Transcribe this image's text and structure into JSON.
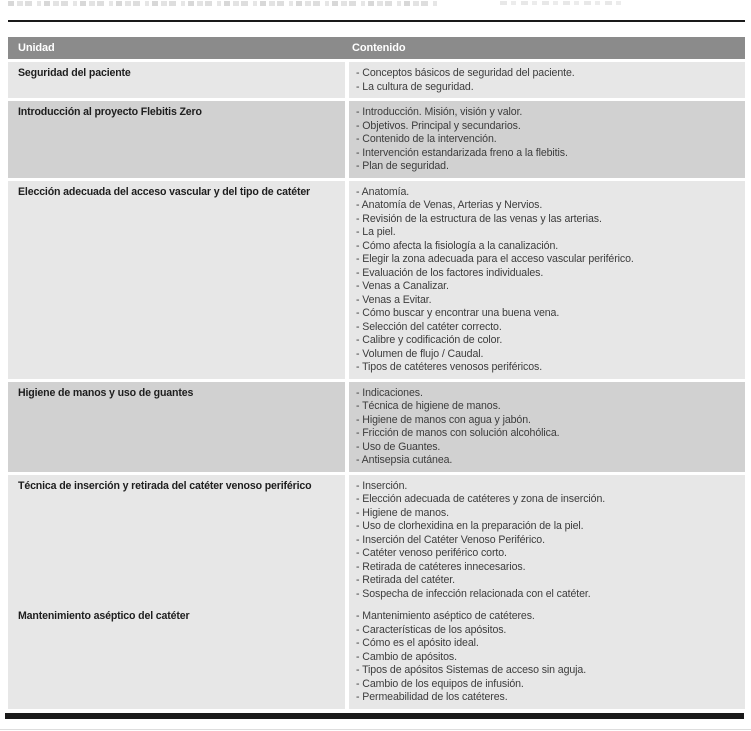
{
  "colors": {
    "header_bg": "#8b8b8b",
    "header_text": "#ffffff",
    "row_light": "#e7e7e7",
    "row_medium": "#d1d1d1",
    "text": "#3c3c3c",
    "label_text": "#1e1e1e",
    "rule": "#1a1a1a"
  },
  "table": {
    "bullet": "-",
    "headers": [
      "Unidad",
      "Contenido"
    ],
    "rows": [
      {
        "unidad": "Seguridad del paciente",
        "shade": "light",
        "attached": false,
        "contenido": [
          "Conceptos básicos de seguridad del paciente.",
          "La cultura de seguridad."
        ]
      },
      {
        "unidad": "Introducción al proyecto Flebitis Zero",
        "shade": "medium",
        "attached": false,
        "contenido": [
          "Introducción. Misión, visión y valor.",
          "Objetivos. Principal y secundarios.",
          "Contenido de la intervención.",
          "Intervención estandarizada freno a la flebitis.",
          "Plan de seguridad."
        ]
      },
      {
        "unidad": "Elección adecuada del acceso vascular y del tipo de catéter",
        "shade": "light",
        "attached": false,
        "contenido": [
          "Anatomía.",
          "Anatomía de Venas, Arterias y Nervios.",
          "Revisión de la estructura de las venas y las arterias.",
          "La piel.",
          "Cómo afecta la fisiología a la canalización.",
          "Elegir la zona adecuada para el acceso vascular periférico.",
          "Evaluación de los factores individuales.",
          "Venas a Canalizar.",
          "Venas a Evitar.",
          "Cómo buscar y encontrar una buena vena.",
          "Selección del catéter correcto.",
          "Calibre y codificación de color.",
          "Volumen de flujo / Caudal.",
          "Tipos de catéteres venosos periféricos."
        ]
      },
      {
        "unidad": "Higiene de manos y uso de guantes",
        "shade": "medium",
        "attached": false,
        "contenido": [
          "Indicaciones.",
          "Técnica de higiene de manos.",
          "Higiene de manos con agua y jabón.",
          "Fricción de manos con solución alcohólica.",
          "Uso de Guantes.",
          "Antisepsia cutánea."
        ]
      },
      {
        "unidad": "Técnica de inserción y retirada del catéter venoso periférico",
        "shade": "light",
        "attached": false,
        "contenido": [
          "Inserción.",
          "Elección adecuada de catéteres y zona de inserción.",
          "Higiene de manos.",
          "Uso de clorhexidina en la preparación de la piel.",
          "Inserción del Catéter Venoso Periférico.",
          "Catéter venoso periférico corto.",
          "Retirada de catéteres innecesarios.",
          "Retirada del catéter.",
          "Sospecha de infección relacionada con el catéter."
        ]
      },
      {
        "unidad": "Mantenimiento aséptico del catéter",
        "shade": "light",
        "attached": true,
        "contenido": [
          "Mantenimiento aséptico de catéteres.",
          "Características de los apósitos.",
          "Cómo es el apósito ideal.",
          "Cambio de apósitos.",
          "Tipos de apósitos Sistemas de acceso sin aguja.",
          "Cambio de los equipos de infusión.",
          "Permeabilidad de los catéteres."
        ]
      }
    ]
  }
}
